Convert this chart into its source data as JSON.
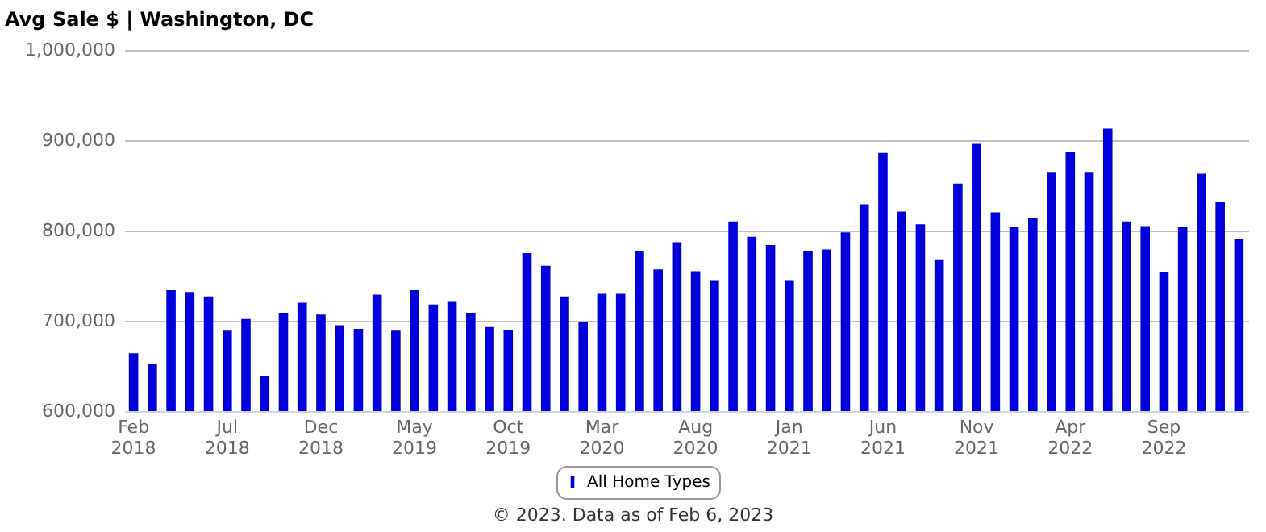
{
  "chart_data": {
    "type": "bar",
    "title": "Avg Sale $ | Washington, DC",
    "categories": [
      "Feb 2018",
      null,
      null,
      null,
      null,
      "Jul 2018",
      null,
      null,
      null,
      null,
      "Dec 2018",
      null,
      null,
      null,
      null,
      "May 2019",
      null,
      null,
      null,
      null,
      "Oct 2019",
      null,
      null,
      null,
      null,
      "Mar 2020",
      null,
      null,
      null,
      null,
      "Aug 2020",
      null,
      null,
      null,
      null,
      "Jan 2021",
      null,
      null,
      null,
      null,
      "Jun 2021",
      null,
      null,
      null,
      null,
      "Nov 2021",
      null,
      null,
      null,
      null,
      "Apr 2022",
      null,
      null,
      null,
      null,
      "Sep 2022",
      null,
      null,
      null,
      null
    ],
    "series": [
      {
        "name": "All Home Types",
        "color": "#0000dd",
        "values": [
          664000,
          652000,
          734000,
          732000,
          727000,
          689000,
          702000,
          639000,
          709000,
          720000,
          707000,
          695000,
          691000,
          729000,
          689000,
          734000,
          718000,
          721000,
          709000,
          693000,
          690000,
          775000,
          761000,
          727000,
          699000,
          730000,
          730000,
          777000,
          757000,
          787000,
          755000,
          745000,
          810000,
          793000,
          784000,
          745000,
          777000,
          779000,
          798000,
          829000,
          886000,
          821000,
          807000,
          768000,
          852000,
          896000,
          820000,
          804000,
          814000,
          864000,
          887000,
          864000,
          913000,
          810000,
          805000,
          754000,
          804000,
          863000,
          832000,
          791000
        ]
      }
    ],
    "ylim": [
      600000,
      1000000
    ],
    "yticks": [
      {
        "value": 600000,
        "label": "600,000"
      },
      {
        "value": 700000,
        "label": "700,000"
      },
      {
        "value": 800000,
        "label": "800,000"
      },
      {
        "value": 900000,
        "label": "900,000"
      },
      {
        "value": 1000000,
        "label": "1,000,000"
      }
    ],
    "grid": "y",
    "legend": "bottom",
    "annotations": [
      "© 2023. Data as of Feb 6, 2023"
    ]
  }
}
